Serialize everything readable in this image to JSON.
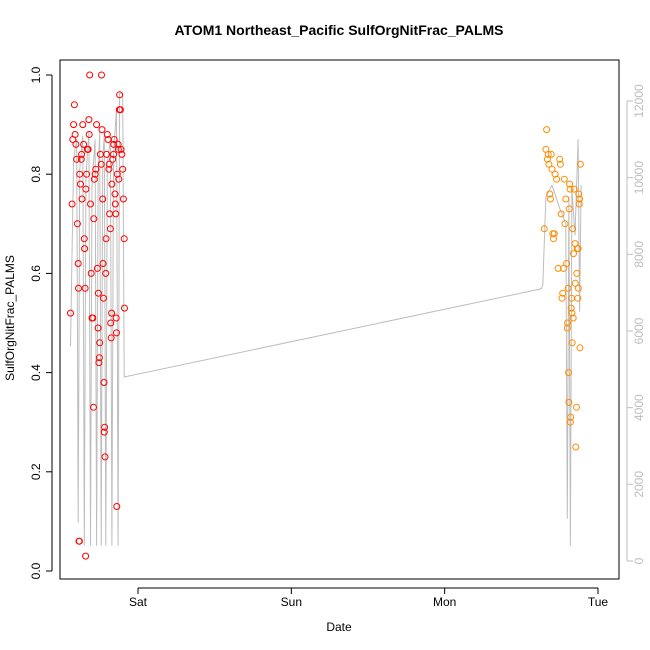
{
  "chart_data": {
    "type": "scatter",
    "title": "ATOM1 Northeast_Pacific SulfOrgNitFrac_PALMS",
    "xlabel": "Date",
    "ylabel": "SulfOrgNitFrac_PALMS",
    "x_unit": "days since Friday 00:00",
    "xlim": [
      1.05,
      4.55
    ],
    "ylim": [
      0.0,
      1.0
    ],
    "x_ticks": [
      {
        "label": "Sat",
        "value": 2.0
      },
      {
        "label": "Sun",
        "value": 3.0
      },
      {
        "label": "Mon",
        "value": 4.0
      },
      {
        "label": "Tue",
        "value": 5.0
      }
    ],
    "y_ticks": [
      "0.0",
      "0.2",
      "0.4",
      "0.6",
      "0.8",
      "1.0"
    ],
    "y2_ticks": [
      "0",
      "2000",
      "4000",
      "6000",
      "8000",
      "10000",
      "12000"
    ],
    "y2lim": [
      0,
      12500
    ],
    "grid": false,
    "colors": {
      "flight1": "#ff0000",
      "flight2": "#ff8c00",
      "altitude": "#bdbdbd",
      "secondary_axis": "#bdbdbd"
    },
    "series": [
      {
        "name": "",
        "color": "#ff0000",
        "points": [
          [
            1.56,
            0.52
          ],
          [
            1.57,
            0.74
          ],
          [
            1.575,
            0.87
          ],
          [
            1.58,
            0.9
          ],
          [
            1.585,
            0.94
          ],
          [
            1.59,
            0.88
          ],
          [
            1.595,
            0.86
          ],
          [
            1.6,
            0.83
          ],
          [
            1.605,
            0.7
          ],
          [
            1.61,
            0.62
          ],
          [
            1.612,
            0.57
          ],
          [
            1.615,
            0.06
          ],
          [
            1.618,
            0.06
          ],
          [
            1.62,
            0.8
          ],
          [
            1.625,
            0.78
          ],
          [
            1.63,
            0.83
          ],
          [
            1.632,
            0.84
          ],
          [
            1.635,
            0.75
          ],
          [
            1.64,
            0.9
          ],
          [
            1.645,
            0.86
          ],
          [
            1.65,
            0.67
          ],
          [
            1.652,
            0.65
          ],
          [
            1.655,
            0.57
          ],
          [
            1.658,
            0.03
          ],
          [
            1.66,
            0.77
          ],
          [
            1.665,
            0.8
          ],
          [
            1.67,
            0.85
          ],
          [
            1.675,
            0.85
          ],
          [
            1.68,
            0.91
          ],
          [
            1.682,
            0.88
          ],
          [
            1.685,
            1.0
          ],
          [
            1.69,
            0.74
          ],
          [
            1.695,
            0.6
          ],
          [
            1.7,
            0.51
          ],
          [
            1.705,
            0.51
          ],
          [
            1.71,
            0.33
          ],
          [
            1.712,
            0.71
          ],
          [
            1.715,
            0.79
          ],
          [
            1.72,
            0.8
          ],
          [
            1.725,
            0.81
          ],
          [
            1.73,
            0.9
          ],
          [
            1.735,
            0.61
          ],
          [
            1.74,
            0.49
          ],
          [
            1.742,
            0.56
          ],
          [
            1.745,
            0.42
          ],
          [
            1.748,
            0.43
          ],
          [
            1.75,
            0.46
          ],
          [
            1.755,
            0.84
          ],
          [
            1.76,
            0.82
          ],
          [
            1.762,
            1.0
          ],
          [
            1.765,
            0.89
          ],
          [
            1.77,
            0.75
          ],
          [
            1.772,
            0.62
          ],
          [
            1.775,
            0.55
          ],
          [
            1.778,
            0.38
          ],
          [
            1.78,
            0.28
          ],
          [
            1.782,
            0.29
          ],
          [
            1.785,
            0.23
          ],
          [
            1.79,
            0.6
          ],
          [
            1.792,
            0.67
          ],
          [
            1.795,
            0.84
          ],
          [
            1.8,
            0.88
          ],
          [
            1.805,
            0.87
          ],
          [
            1.81,
            0.81
          ],
          [
            1.812,
            0.82
          ],
          [
            1.815,
            0.72
          ],
          [
            1.82,
            0.69
          ],
          [
            1.822,
            0.5
          ],
          [
            1.825,
            0.47
          ],
          [
            1.828,
            0.52
          ],
          [
            1.83,
            0.78
          ],
          [
            1.835,
            0.83
          ],
          [
            1.84,
            0.84
          ],
          [
            1.842,
            0.86
          ],
          [
            1.845,
            0.87
          ],
          [
            1.85,
            0.76
          ],
          [
            1.852,
            0.74
          ],
          [
            1.855,
            0.72
          ],
          [
            1.858,
            0.51
          ],
          [
            1.86,
            0.48
          ],
          [
            1.862,
            0.13
          ],
          [
            1.865,
            0.8
          ],
          [
            1.87,
            0.86
          ],
          [
            1.872,
            0.85
          ],
          [
            1.875,
            0.79
          ],
          [
            1.878,
            0.93
          ],
          [
            1.88,
            0.96
          ],
          [
            1.885,
            0.93
          ],
          [
            1.89,
            0.85
          ],
          [
            1.895,
            0.84
          ],
          [
            1.9,
            0.81
          ],
          [
            1.905,
            0.75
          ],
          [
            1.91,
            0.67
          ],
          [
            1.912,
            0.53
          ]
        ]
      },
      {
        "name": "",
        "color": "#ff8c00",
        "points": [
          [
            4.65,
            0.69
          ],
          [
            4.66,
            0.85
          ],
          [
            4.665,
            0.89
          ],
          [
            4.67,
            0.83
          ],
          [
            4.675,
            0.84
          ],
          [
            4.68,
            0.82
          ],
          [
            4.685,
            0.76
          ],
          [
            4.69,
            0.75
          ],
          [
            4.695,
            0.84
          ],
          [
            4.7,
            0.81
          ],
          [
            4.705,
            0.68
          ],
          [
            4.71,
            0.67
          ],
          [
            4.715,
            0.68
          ],
          [
            4.72,
            0.8
          ],
          [
            4.73,
            0.79
          ],
          [
            4.74,
            0.61
          ],
          [
            4.75,
            0.83
          ],
          [
            4.755,
            0.82
          ],
          [
            4.76,
            0.72
          ],
          [
            4.765,
            0.55
          ],
          [
            4.77,
            0.56
          ],
          [
            4.775,
            0.61
          ],
          [
            4.78,
            0.79
          ],
          [
            4.785,
            0.7
          ],
          [
            4.79,
            0.75
          ],
          [
            4.795,
            0.62
          ],
          [
            4.8,
            0.49
          ],
          [
            4.802,
            0.5
          ],
          [
            4.805,
            0.57
          ],
          [
            4.808,
            0.4
          ],
          [
            4.81,
            0.34
          ],
          [
            4.812,
            0.73
          ],
          [
            4.815,
            0.78
          ],
          [
            4.818,
            0.77
          ],
          [
            4.82,
            0.3
          ],
          [
            4.822,
            0.31
          ],
          [
            4.825,
            0.53
          ],
          [
            4.828,
            0.55
          ],
          [
            4.83,
            0.52
          ],
          [
            4.832,
            0.46
          ],
          [
            4.835,
            0.69
          ],
          [
            4.838,
            0.51
          ],
          [
            4.84,
            0.64
          ],
          [
            4.845,
            0.77
          ],
          [
            4.85,
            0.66
          ],
          [
            4.852,
            0.58
          ],
          [
            4.855,
            0.25
          ],
          [
            4.86,
            0.33
          ],
          [
            4.862,
            0.6
          ],
          [
            4.865,
            0.65
          ],
          [
            4.868,
            0.55
          ],
          [
            4.87,
            0.65
          ],
          [
            4.872,
            0.57
          ],
          [
            4.875,
            0.76
          ],
          [
            4.878,
            0.74
          ],
          [
            4.88,
            0.75
          ],
          [
            4.882,
            0.45
          ],
          [
            4.885,
            0.82
          ]
        ]
      }
    ],
    "altitude_series": {
      "name": "",
      "axis": "right",
      "color": "#bdbdbd",
      "points": [
        [
          1.56,
          5600
        ],
        [
          1.58,
          10500
        ],
        [
          1.6,
          11000
        ],
        [
          1.61,
          1000
        ],
        [
          1.62,
          10200
        ],
        [
          1.64,
          11100
        ],
        [
          1.65,
          400
        ],
        [
          1.66,
          10000
        ],
        [
          1.68,
          11200
        ],
        [
          1.69,
          400
        ],
        [
          1.7,
          9800
        ],
        [
          1.72,
          11000
        ],
        [
          1.73,
          400
        ],
        [
          1.74,
          10000
        ],
        [
          1.75,
          11200
        ],
        [
          1.76,
          400
        ],
        [
          1.77,
          10500
        ],
        [
          1.78,
          11100
        ],
        [
          1.79,
          400
        ],
        [
          1.8,
          10400
        ],
        [
          1.82,
          11000
        ],
        [
          1.83,
          400
        ],
        [
          1.84,
          10600
        ],
        [
          1.86,
          11800
        ],
        [
          1.87,
          400
        ],
        [
          1.88,
          12200
        ],
        [
          1.9,
          12200
        ],
        [
          1.91,
          4800
        ],
        [
          4.63,
          7100
        ],
        [
          4.64,
          7200
        ],
        [
          4.66,
          9500
        ],
        [
          4.7,
          9800
        ],
        [
          4.75,
          9200
        ],
        [
          4.79,
          8800
        ],
        [
          4.8,
          1100
        ],
        [
          4.81,
          9500
        ],
        [
          4.82,
          400
        ],
        [
          4.83,
          9700
        ],
        [
          4.85,
          8500
        ],
        [
          4.87,
          11000
        ],
        [
          4.88,
          6500
        ],
        [
          4.89,
          9800
        ]
      ]
    }
  }
}
